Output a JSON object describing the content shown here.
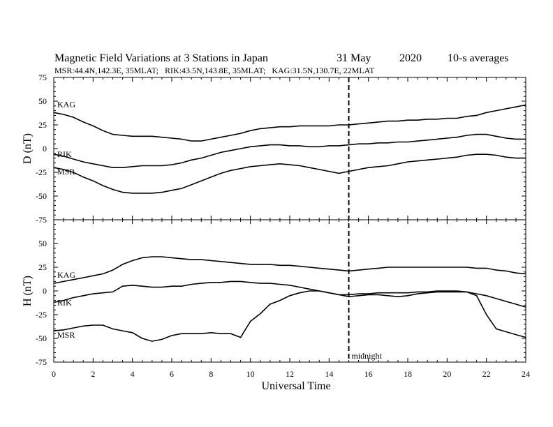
{
  "chart_data": [
    {
      "type": "line",
      "panel": "top",
      "title": "Magnetic Field Variations at 3 Stations in Japan",
      "date": "31 May",
      "year": "2020",
      "resolution": "10-s averages",
      "subtitle": "MSR:44.4N,142.3E, 35MLAT;   RIK:43.5N,143.8E, 35MLAT;   KAG:31.5N,130.7E, 22MLAT",
      "ylabel": "D (nT)",
      "ylim": [
        -75,
        75
      ],
      "yticks": [
        "75",
        "50",
        "25",
        "0",
        "-25",
        "-50",
        "-75"
      ],
      "x": [
        0,
        0.5,
        1,
        1.5,
        2,
        2.5,
        3,
        3.5,
        4,
        4.5,
        5,
        5.5,
        6,
        6.5,
        7,
        7.5,
        8,
        8.5,
        9,
        9.5,
        10,
        10.5,
        11,
        11.5,
        12,
        12.5,
        13,
        13.5,
        14,
        14.5,
        15,
        15.5,
        16,
        16.5,
        17,
        17.5,
        18,
        18.5,
        19,
        19.5,
        20,
        20.5,
        21,
        21.5,
        22,
        22.5,
        23,
        23.5,
        24
      ],
      "series": [
        {
          "name": "KAG",
          "values": [
            38,
            36,
            33,
            28,
            24,
            19,
            15,
            14,
            13,
            13,
            13,
            12,
            11,
            10,
            8,
            8,
            10,
            12,
            14,
            16,
            19,
            21,
            22,
            23,
            23,
            24,
            24,
            24,
            24,
            25,
            25,
            26,
            27,
            28,
            29,
            29,
            30,
            30,
            31,
            31,
            32,
            32,
            34,
            35,
            38,
            40,
            42,
            44,
            46
          ]
        },
        {
          "name": "RIK",
          "values": [
            -6,
            -8,
            -11,
            -14,
            -16,
            -18,
            -20,
            -20,
            -19,
            -18,
            -18,
            -18,
            -17,
            -15,
            -12,
            -10,
            -7,
            -4,
            -2,
            0,
            2,
            3,
            4,
            4,
            3,
            3,
            2,
            2,
            3,
            3,
            4,
            5,
            5,
            6,
            6,
            7,
            7,
            8,
            9,
            10,
            11,
            12,
            14,
            15,
            15,
            13,
            11,
            10,
            10
          ]
        },
        {
          "name": "MSR",
          "values": [
            -20,
            -22,
            -25,
            -30,
            -34,
            -39,
            -43,
            -46,
            -47,
            -47,
            -47,
            -46,
            -44,
            -42,
            -38,
            -34,
            -30,
            -26,
            -23,
            -21,
            -19,
            -18,
            -17,
            -16,
            -17,
            -18,
            -20,
            -22,
            -24,
            -26,
            -24,
            -22,
            -20,
            -19,
            -18,
            -16,
            -14,
            -13,
            -12,
            -11,
            -10,
            -9,
            -7,
            -6,
            -6,
            -7,
            -9,
            -10,
            -10
          ]
        }
      ]
    },
    {
      "type": "line",
      "panel": "bottom",
      "ylabel": "H (nT)",
      "xlabel": "Universal Time",
      "ylim": [
        -75,
        75
      ],
      "yticks": [
        "75",
        "50",
        "25",
        "0",
        "-25",
        "-50",
        "-75"
      ],
      "xlim": [
        0,
        24
      ],
      "xticks": [
        "0",
        "2",
        "4",
        "6",
        "8",
        "10",
        "12",
        "14",
        "16",
        "18",
        "20",
        "22",
        "24"
      ],
      "x": [
        0,
        0.5,
        1,
        1.5,
        2,
        2.5,
        3,
        3.5,
        4,
        4.5,
        5,
        5.5,
        6,
        6.5,
        7,
        7.5,
        8,
        8.5,
        9,
        9.5,
        10,
        10.5,
        11,
        11.5,
        12,
        12.5,
        13,
        13.5,
        14,
        14.5,
        15,
        15.5,
        16,
        16.5,
        17,
        17.5,
        18,
        18.5,
        19,
        19.5,
        20,
        20.5,
        21,
        21.5,
        22,
        22.5,
        23,
        23.5,
        24
      ],
      "series": [
        {
          "name": "KAG",
          "values": [
            8,
            10,
            12,
            14,
            16,
            18,
            22,
            28,
            32,
            35,
            36,
            36,
            35,
            34,
            33,
            33,
            32,
            31,
            30,
            29,
            28,
            28,
            28,
            27,
            27,
            26,
            25,
            24,
            23,
            22,
            21,
            22,
            23,
            24,
            25,
            25,
            25,
            25,
            25,
            25,
            25,
            25,
            25,
            24,
            24,
            22,
            21,
            19,
            18
          ]
        },
        {
          "name": "RIK",
          "values": [
            -12,
            -10,
            -7,
            -5,
            -3,
            -2,
            -1,
            5,
            6,
            5,
            4,
            4,
            5,
            5,
            7,
            8,
            9,
            9,
            10,
            10,
            9,
            8,
            8,
            7,
            6,
            4,
            2,
            0,
            -2,
            -4,
            -4,
            -3,
            -3,
            -2,
            -2,
            -2,
            -2,
            -1,
            -1,
            0,
            0,
            0,
            -1,
            -3,
            -5,
            -8,
            -11,
            -14,
            -17
          ]
        },
        {
          "name": "MSR",
          "values": [
            -42,
            -41,
            -39,
            -37,
            -36,
            -36,
            -40,
            -42,
            -44,
            -50,
            -53,
            -51,
            -47,
            -45,
            -45,
            -45,
            -44,
            -45,
            -45,
            -49,
            -32,
            -24,
            -14,
            -10,
            -5,
            -2,
            0,
            0,
            -2,
            -4,
            -6,
            -5,
            -4,
            -4,
            -5,
            -6,
            -5,
            -3,
            -2,
            -1,
            -1,
            -1,
            -1,
            -5,
            -25,
            -40,
            -43,
            -46,
            -49
          ]
        }
      ],
      "annotation": "midnight",
      "marker_x": 15
    }
  ]
}
